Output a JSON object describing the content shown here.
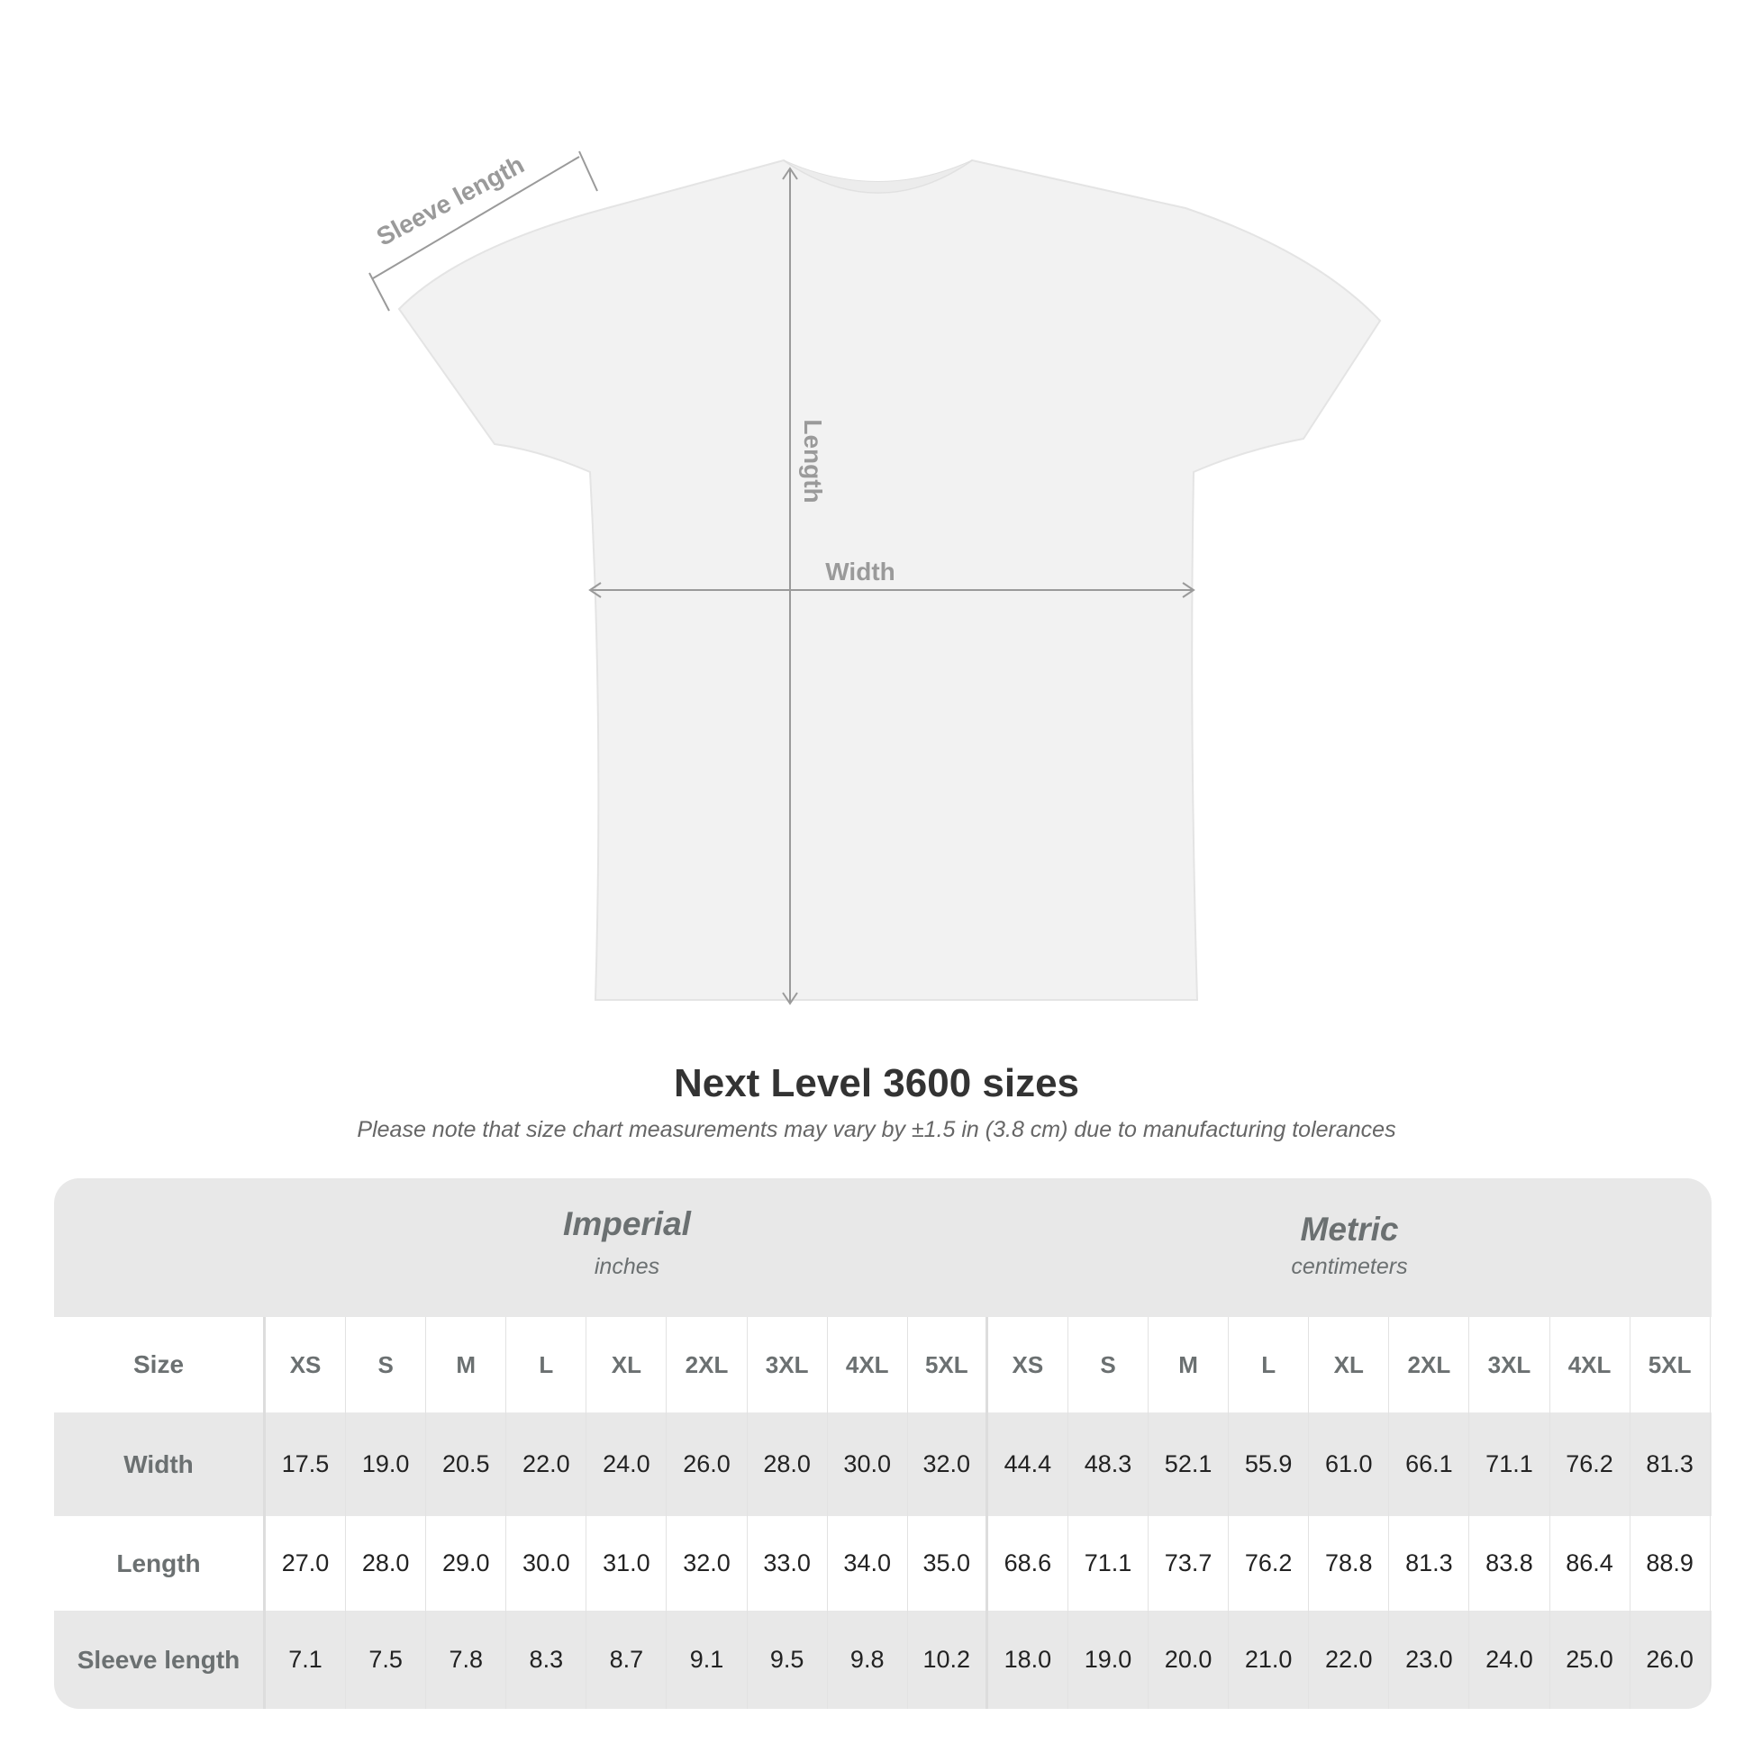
{
  "diagram": {
    "labels": {
      "sleeve": "Sleeve length",
      "length": "Length",
      "width": "Width"
    },
    "shirt_color": "#f2f2f2",
    "arrow_color": "#9a9a9a"
  },
  "title": "Next Level 3600 sizes",
  "subtitle": "Please note that size chart measurements may vary by ±1.5 in (3.8 cm) due to manufacturing tolerances",
  "table": {
    "imperial": {
      "title": "Imperial",
      "unit": "inches"
    },
    "metric": {
      "title": "Metric",
      "unit": "centimeters"
    },
    "size_label": "Size",
    "sizes": [
      "XS",
      "S",
      "M",
      "L",
      "XL",
      "2XL",
      "3XL",
      "4XL",
      "5XL"
    ],
    "rows": [
      {
        "label": "Width",
        "imperial": [
          "17.5",
          "19.0",
          "20.5",
          "22.0",
          "24.0",
          "26.0",
          "28.0",
          "30.0",
          "32.0"
        ],
        "metric": [
          "44.4",
          "48.3",
          "52.1",
          "55.9",
          "61.0",
          "66.1",
          "71.1",
          "76.2",
          "81.3"
        ]
      },
      {
        "label": "Length",
        "imperial": [
          "27.0",
          "28.0",
          "29.0",
          "30.0",
          "31.0",
          "32.0",
          "33.0",
          "34.0",
          "35.0"
        ],
        "metric": [
          "68.6",
          "71.1",
          "73.7",
          "76.2",
          "78.8",
          "81.3",
          "83.8",
          "86.4",
          "88.9"
        ]
      },
      {
        "label": "Sleeve length",
        "imperial": [
          "7.1",
          "7.5",
          "7.8",
          "8.3",
          "8.7",
          "9.1",
          "9.5",
          "9.8",
          "10.2"
        ],
        "metric": [
          "18.0",
          "19.0",
          "20.0",
          "21.0",
          "22.0",
          "23.0",
          "24.0",
          "25.0",
          "26.0"
        ]
      }
    ]
  }
}
